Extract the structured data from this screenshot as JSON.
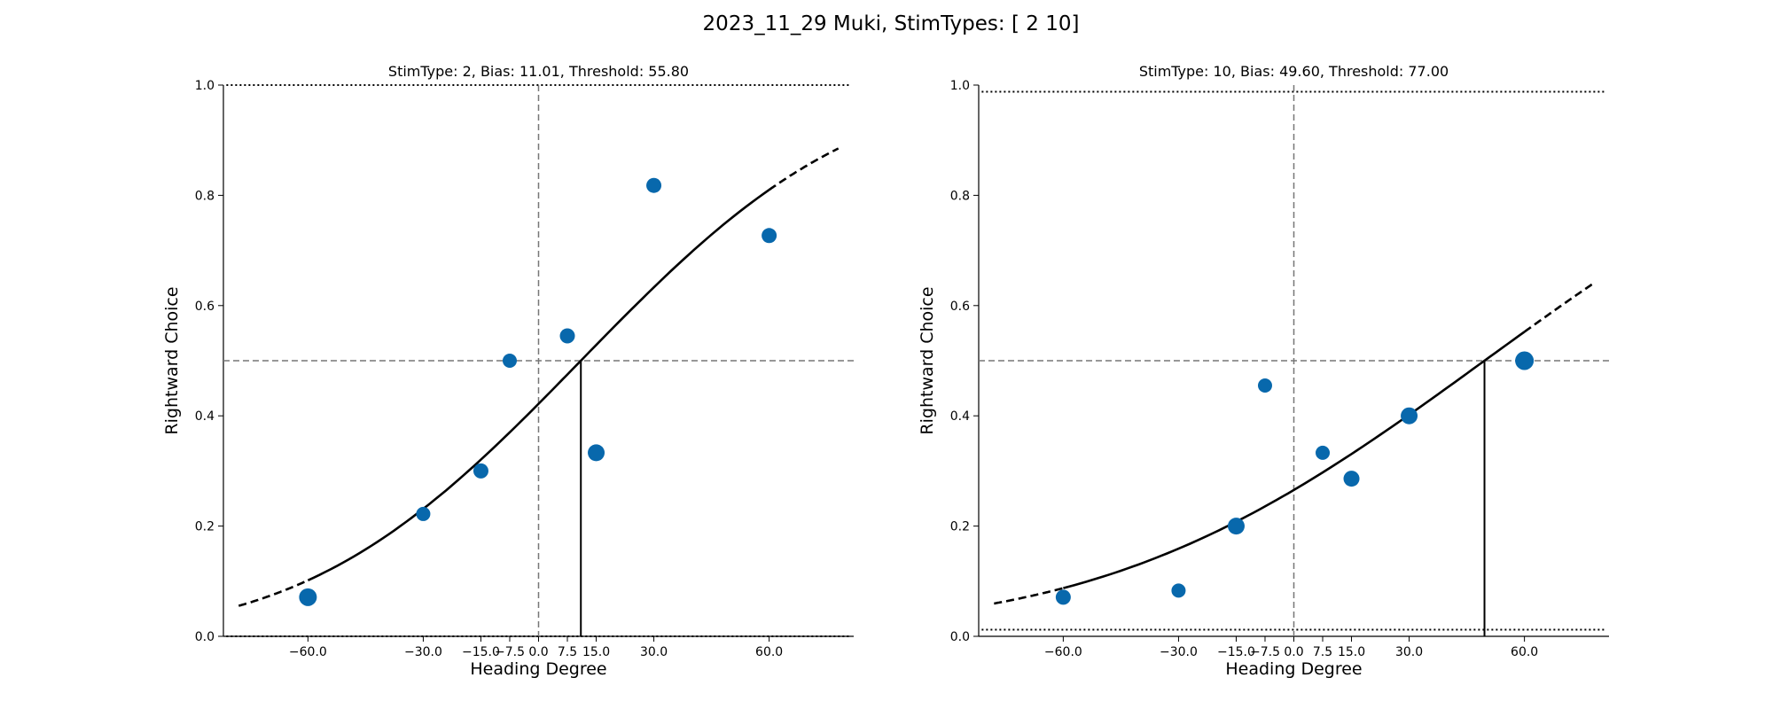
{
  "suptitle": "2023_11_29 Muki, StimTypes: [ 2 10]",
  "colors": {
    "marker": "#0868ac",
    "fit": "#000000",
    "reference": "#777777"
  },
  "chart_data": [
    {
      "type": "scatter",
      "title": "StimType: 2, Bias: 11.01, Threshold: 55.80",
      "xlabel": "Heading Degree",
      "ylabel": "Rightward Choice",
      "xlim": [
        -82,
        82
      ],
      "ylim": [
        0,
        1
      ],
      "xticks": [
        -60,
        -30,
        -15,
        -7.5,
        0,
        7.5,
        15,
        30,
        60
      ],
      "xtick_labels": [
        "−60.0",
        "−30.0",
        "−15.0",
        "−7.5",
        "0.0",
        "7.5",
        "15.0",
        "30.0",
        "60.0"
      ],
      "yticks": [
        0,
        0.2,
        0.4,
        0.6,
        0.8,
        1.0
      ],
      "ytick_labels": [
        "0.0",
        "0.2",
        "0.4",
        "0.6",
        "0.8",
        "1.0"
      ],
      "bias": 11.01,
      "threshold": 55.8,
      "lapse_low": 0.0,
      "lapse_high": 1.0,
      "points": [
        {
          "x": -60,
          "y": 0.071,
          "size": 10
        },
        {
          "x": -30,
          "y": 0.222,
          "size": 8
        },
        {
          "x": -15,
          "y": 0.3,
          "size": 8.5
        },
        {
          "x": -7.5,
          "y": 0.5,
          "size": 8
        },
        {
          "x": 7.5,
          "y": 0.545,
          "size": 8.5
        },
        {
          "x": 15,
          "y": 0.333,
          "size": 9.5
        },
        {
          "x": 30,
          "y": 0.818,
          "size": 8.5
        },
        {
          "x": 60,
          "y": 0.727,
          "size": 8.5
        }
      ],
      "grid": false
    },
    {
      "type": "scatter",
      "title": "StimType: 10, Bias: 49.60, Threshold: 77.00",
      "xlabel": "Heading Degree",
      "ylabel": "Rightward Choice",
      "xlim": [
        -82,
        82
      ],
      "ylim": [
        0,
        1
      ],
      "xticks": [
        -60,
        -30,
        -15,
        -7.5,
        0,
        7.5,
        15,
        30,
        60
      ],
      "xtick_labels": [
        "−60.0",
        "−30.0",
        "−15.0",
        "−7.5",
        "0.0",
        "7.5",
        "15.0",
        "30.0",
        "60.0"
      ],
      "yticks": [
        0,
        0.2,
        0.4,
        0.6,
        0.8,
        1.0
      ],
      "ytick_labels": [
        "0.0",
        "0.2",
        "0.4",
        "0.6",
        "0.8",
        "1.0"
      ],
      "bias": 49.6,
      "threshold": 77.0,
      "lapse_low": 0.012,
      "lapse_high": 0.988,
      "points": [
        {
          "x": -60,
          "y": 0.071,
          "size": 8.5
        },
        {
          "x": -30,
          "y": 0.083,
          "size": 8
        },
        {
          "x": -15,
          "y": 0.2,
          "size": 9.5
        },
        {
          "x": -7.5,
          "y": 0.455,
          "size": 8
        },
        {
          "x": 7.5,
          "y": 0.333,
          "size": 8
        },
        {
          "x": 15,
          "y": 0.286,
          "size": 9
        },
        {
          "x": 30,
          "y": 0.4,
          "size": 9.5
        },
        {
          "x": 60,
          "y": 0.5,
          "size": 10.5
        }
      ],
      "grid": false
    }
  ]
}
